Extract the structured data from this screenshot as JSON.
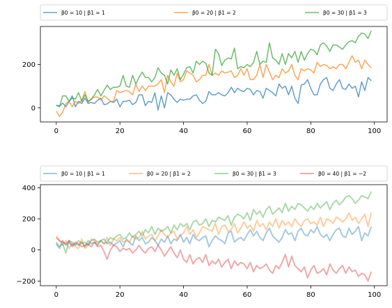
{
  "chart_data": [
    {
      "type": "line",
      "x_start": 0,
      "x_step": 1,
      "xlim": [
        -5,
        104
      ],
      "ylim": [
        -65,
        375
      ],
      "xticks": [
        0,
        20,
        40,
        60,
        80,
        100
      ],
      "yticks": [
        0,
        200
      ],
      "grid": false,
      "legend_position": "above plot",
      "series": [
        {
          "name": "β0 = 10 | β1 = 1",
          "color": "#1f77b4",
          "alpha": 0.7,
          "values": [
            12,
            8,
            22,
            5,
            28,
            55,
            5,
            30,
            20,
            45,
            20,
            25,
            20,
            35,
            45,
            15,
            18,
            30,
            25,
            40,
            5,
            30,
            30,
            35,
            15,
            25,
            60,
            60,
            10,
            30,
            25,
            70,
            -10,
            55,
            0,
            70,
            60,
            40,
            25,
            40,
            35,
            40,
            40,
            55,
            60,
            35,
            20,
            30,
            75,
            60,
            60,
            70,
            60,
            55,
            70,
            95,
            70,
            90,
            80,
            75,
            90,
            85,
            60,
            80,
            75,
            45,
            90,
            80,
            70,
            55,
            110,
            90,
            100,
            60,
            100,
            45,
            20,
            105,
            110,
            130,
            90,
            60,
            60,
            110,
            130,
            140,
            90,
            80,
            110,
            130,
            90,
            85,
            110,
            90,
            100,
            50,
            120,
            80,
            140,
            125
          ]
        },
        {
          "name": "β0 = 20 | β1 = 2",
          "color": "#ff7f0e",
          "alpha": 0.7,
          "values": [
            -15,
            -40,
            -20,
            20,
            30,
            5,
            30,
            20,
            35,
            75,
            25,
            40,
            50,
            50,
            35,
            55,
            45,
            30,
            30,
            80,
            70,
            75,
            80,
            75,
            60,
            110,
            75,
            100,
            80,
            100,
            100,
            100,
            110,
            130,
            70,
            150,
            120,
            100,
            160,
            120,
            130,
            170,
            160,
            150,
            120,
            130,
            150,
            150,
            200,
            150,
            160,
            150,
            170,
            160,
            165,
            170,
            140,
            150,
            180,
            150,
            180,
            130,
            130,
            150,
            200,
            140,
            200,
            165,
            130,
            150,
            140,
            180,
            160,
            170,
            200,
            150,
            130,
            180,
            170,
            180,
            175,
            160,
            210,
            190,
            200,
            195,
            180,
            190,
            180,
            200,
            200,
            180,
            210,
            240,
            210,
            220,
            180,
            220,
            200,
            185
          ]
        },
        {
          "name": "β0 = 30 | β1 = 3",
          "color": "#2ca02c",
          "alpha": 0.7,
          "values": [
            12,
            5,
            55,
            55,
            30,
            45,
            40,
            70,
            30,
            60,
            30,
            40,
            60,
            85,
            55,
            80,
            105,
            85,
            95,
            95,
            100,
            150,
            100,
            95,
            150,
            110,
            140,
            165,
            140,
            140,
            120,
            140,
            185,
            160,
            150,
            110,
            175,
            150,
            180,
            130,
            155,
            185,
            190,
            160,
            215,
            200,
            215,
            205,
            160,
            150,
            270,
            250,
            195,
            220,
            230,
            225,
            275,
            180,
            190,
            185,
            200,
            190,
            210,
            260,
            200,
            215,
            210,
            300,
            230,
            220,
            200,
            250,
            200,
            250,
            230,
            260,
            210,
            260,
            220,
            250,
            270,
            265,
            245,
            290,
            300,
            285,
            260,
            290,
            290,
            280,
            270,
            290,
            305,
            310,
            300,
            330,
            345,
            340,
            320,
            355
          ]
        }
      ]
    },
    {
      "type": "line",
      "x_start": 0,
      "x_step": 1,
      "xlim": [
        -5,
        104
      ],
      "ylim": [
        -230,
        420
      ],
      "xticks": [
        0,
        20,
        40,
        60,
        80,
        100
      ],
      "yticks": [
        -200,
        0,
        200,
        400
      ],
      "grid": false,
      "legend_position": "above plot",
      "series": [
        {
          "name": "β0 = 10 | β1 = 1",
          "color": "#1f77b4",
          "alpha": 0.4,
          "values": [
            40,
            10,
            60,
            30,
            50,
            20,
            40,
            30,
            50,
            20,
            60,
            40,
            50,
            30,
            60,
            70,
            40,
            50,
            30,
            45,
            60,
            20,
            70,
            50,
            30,
            90,
            60,
            80,
            40,
            50,
            80,
            60,
            30,
            70,
            50,
            90,
            40,
            70,
            60,
            100,
            50,
            80,
            40,
            100,
            70,
            60,
            80,
            90,
            20,
            60,
            90,
            70,
            60,
            40,
            110,
            120,
            50,
            70,
            80,
            60,
            100,
            130,
            90,
            120,
            80,
            60,
            110,
            140,
            90,
            70,
            50,
            80,
            130,
            100,
            110,
            60,
            120,
            140,
            100,
            90,
            130,
            110,
            150,
            100,
            80,
            100,
            60,
            100,
            130,
            140,
            90,
            80,
            140,
            100,
            120,
            150,
            60,
            110,
            90,
            150
          ]
        },
        {
          "name": "β0 = 20 | β1 = 2",
          "color": "#ff7f0e",
          "alpha": 0.4,
          "values": [
            90,
            60,
            30,
            60,
            10,
            40,
            20,
            10,
            70,
            10,
            30,
            70,
            60,
            40,
            60,
            40,
            80,
            30,
            70,
            60,
            80,
            50,
            60,
            50,
            90,
            70,
            80,
            120,
            70,
            90,
            100,
            60,
            90,
            130,
            100,
            80,
            110,
            120,
            70,
            90,
            110,
            150,
            100,
            130,
            80,
            110,
            150,
            140,
            130,
            120,
            170,
            100,
            150,
            160,
            120,
            130,
            170,
            110,
            140,
            180,
            140,
            160,
            120,
            190,
            150,
            170,
            130,
            180,
            150,
            200,
            140,
            190,
            160,
            180,
            150,
            200,
            170,
            150,
            190,
            200,
            170,
            180,
            160,
            210,
            150,
            200,
            190,
            170,
            210,
            200,
            180,
            200,
            240,
            190,
            210,
            170,
            200,
            230,
            150,
            240
          ]
        },
        {
          "name": "β0 = 30 | β1 = 3",
          "color": "#2ca02c",
          "alpha": 0.4,
          "values": [
            50,
            20,
            40,
            -20,
            60,
            50,
            30,
            60,
            40,
            50,
            30,
            60,
            70,
            50,
            60,
            40,
            50,
            80,
            70,
            90,
            100,
            70,
            80,
            110,
            80,
            100,
            120,
            90,
            130,
            110,
            150,
            100,
            140,
            120,
            130,
            150,
            110,
            160,
            130,
            170,
            150,
            170,
            130,
            180,
            190,
            160,
            170,
            200,
            150,
            190,
            180,
            210,
            200,
            190,
            220,
            160,
            210,
            230,
            220,
            200,
            240,
            190,
            260,
            230,
            250,
            210,
            260,
            280,
            230,
            250,
            270,
            240,
            300,
            250,
            280,
            260,
            300,
            290,
            270,
            250,
            280,
            260,
            300,
            270,
            290,
            310,
            260,
            300,
            320,
            290,
            310,
            340,
            350,
            330,
            300,
            320,
            350,
            340,
            330,
            375
          ]
        },
        {
          "name": "β0 = 40 | β1 = −2",
          "color": "#d62728",
          "alpha": 0.4,
          "values": [
            80,
            60,
            50,
            40,
            60,
            30,
            50,
            40,
            20,
            30,
            40,
            20,
            50,
            20,
            30,
            -10,
            -60,
            0,
            30,
            20,
            -10,
            10,
            0,
            10,
            -20,
            0,
            30,
            0,
            -20,
            10,
            20,
            -10,
            30,
            0,
            -40,
            -10,
            20,
            -20,
            -50,
            0,
            -60,
            -80,
            -30,
            -90,
            -60,
            -50,
            -80,
            -30,
            -100,
            -70,
            -90,
            -60,
            -110,
            -80,
            -60,
            -120,
            -70,
            -100,
            -80,
            -90,
            -120,
            -80,
            -140,
            -100,
            -120,
            -110,
            -90,
            -130,
            -150,
            -100,
            -120,
            -80,
            -30,
            -110,
            -40,
            -100,
            -120,
            -140,
            -110,
            -180,
            -130,
            -100,
            -150,
            -140,
            -120,
            -160,
            -90,
            -130,
            -150,
            -120,
            -100,
            -150,
            -110,
            -140,
            -130,
            -170,
            -150,
            -160,
            -200,
            -140
          ]
        }
      ]
    }
  ]
}
